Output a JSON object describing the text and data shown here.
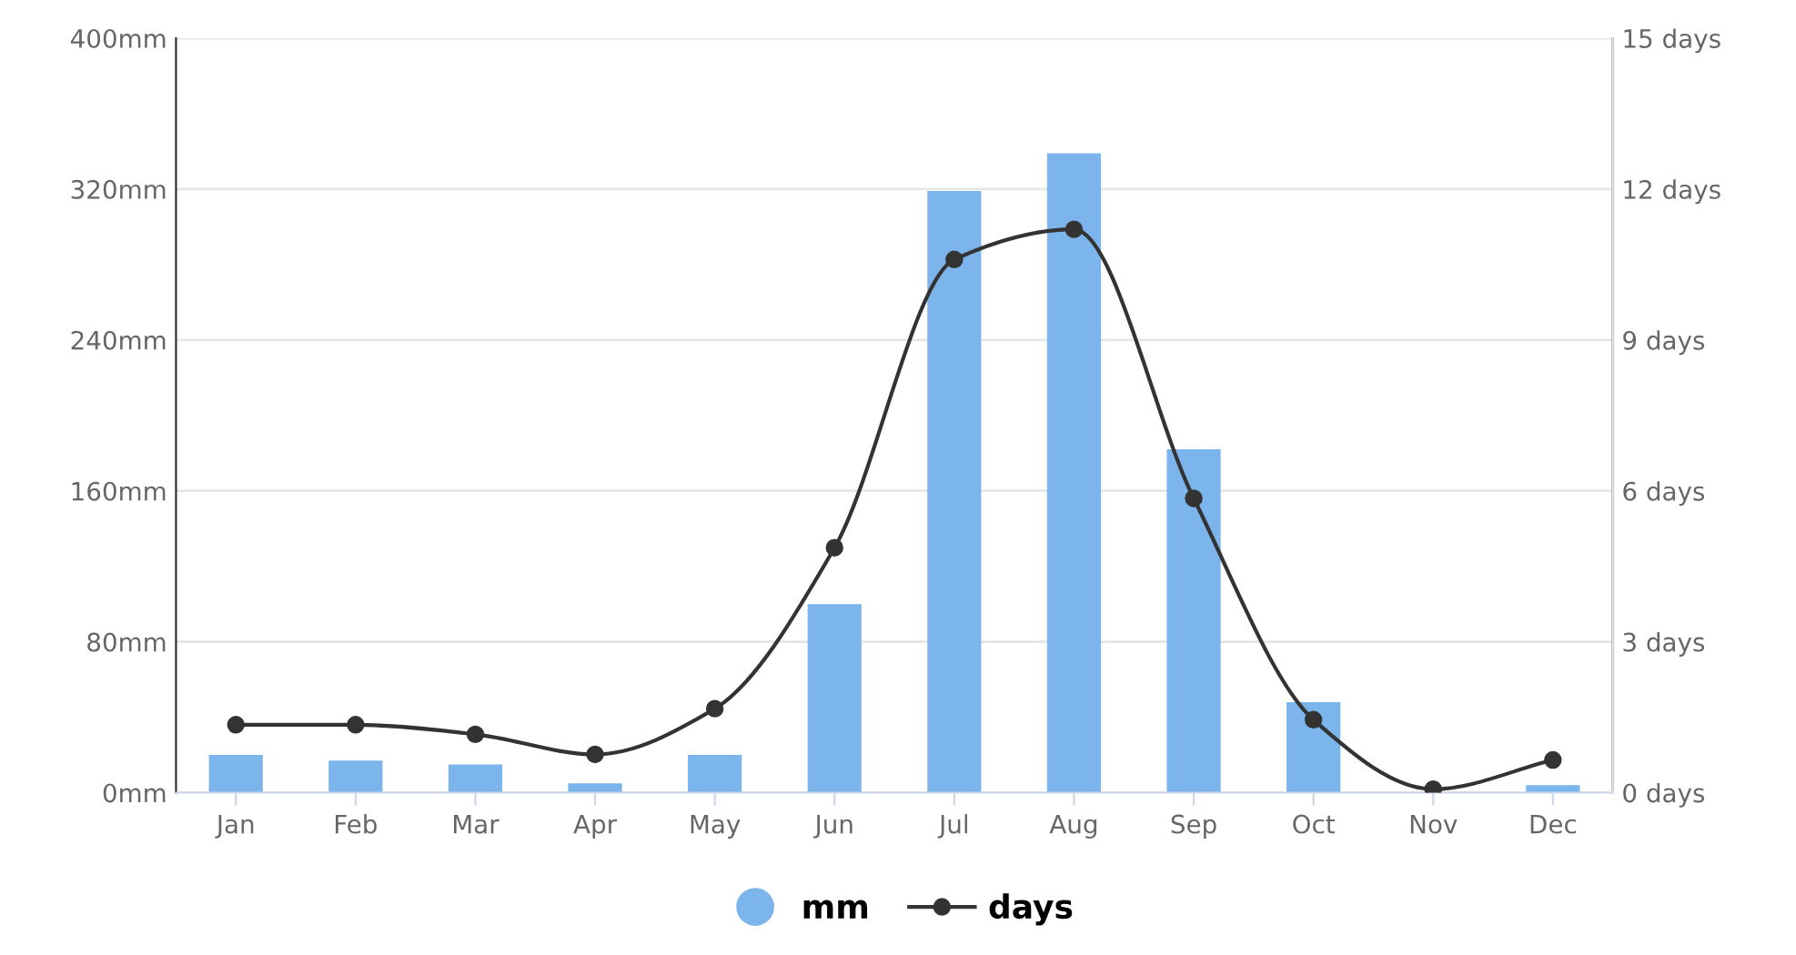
{
  "chart_data": {
    "type": "bar",
    "categories": [
      "Jan",
      "Feb",
      "Mar",
      "Apr",
      "May",
      "Jun",
      "Jul",
      "Aug",
      "Sep",
      "Oct",
      "Nov",
      "Dec"
    ],
    "series": [
      {
        "name": "mm",
        "color": "#7cb5ec",
        "values": [
          20,
          17,
          15,
          5,
          20,
          100,
          319,
          339,
          182,
          48,
          0,
          4
        ]
      },
      {
        "name": "days",
        "type": "line",
        "axis": "y2",
        "color": "#333333",
        "marker": "circle",
        "values": [
          1.35,
          1.35,
          1.16,
          0.76,
          1.67,
          4.87,
          10.6,
          11.2,
          5.85,
          1.45,
          0.07,
          0.65
        ]
      }
    ],
    "ylim": [
      0,
      400
    ],
    "yticks": [
      {
        "value": 0,
        "label": "0mm"
      },
      {
        "value": 80,
        "label": "80mm"
      },
      {
        "value": 160,
        "label": "160mm"
      },
      {
        "value": 240,
        "label": "240mm"
      },
      {
        "value": 320,
        "label": "320mm"
      },
      {
        "value": 400,
        "label": "400mm"
      }
    ],
    "y2lim": [
      0,
      15
    ],
    "y2ticks": [
      {
        "value": 0,
        "label": "0 days"
      },
      {
        "value": 3,
        "label": "3 days"
      },
      {
        "value": 6,
        "label": "6 days"
      },
      {
        "value": 9,
        "label": "9 days"
      },
      {
        "value": 12,
        "label": "12 days"
      },
      {
        "value": 15,
        "label": "15 days"
      }
    ],
    "grid": "y",
    "legend": "bottom"
  }
}
